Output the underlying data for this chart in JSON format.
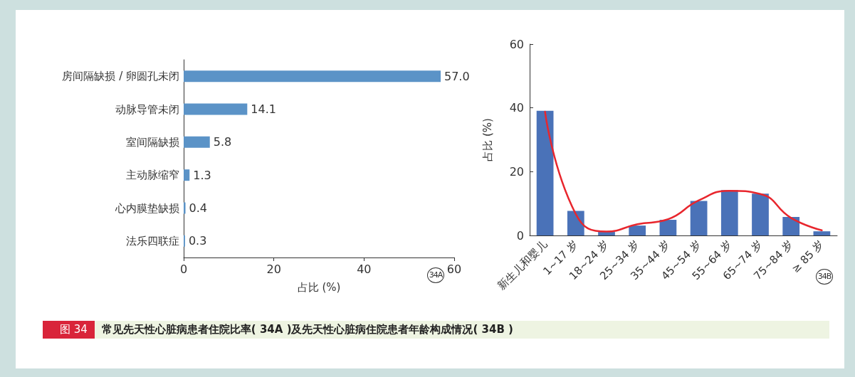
{
  "chart_data": [
    {
      "type": "bar",
      "orientation": "horizontal",
      "categories": [
        "房间隔缺损 / 卵圆孔未闭",
        "动脉导管未闭",
        "室间隔缺损",
        "主动脉缩窄",
        "心内膜垫缺损",
        "法乐四联症"
      ],
      "values": [
        57.0,
        14.1,
        5.8,
        1.3,
        0.4,
        0.3
      ],
      "value_labels": [
        "57.0",
        "14.1",
        "5.8",
        "1.3",
        "0.4",
        "0.3"
      ],
      "color": "#5b93c7",
      "xlim": [
        0,
        60
      ],
      "xticks": [
        0,
        20,
        40,
        60
      ],
      "xlabel": "占比 (%)",
      "grid": false,
      "annotations": [
        "34A",
        "图 34",
        "常见先天性心脏病患者住院比率( 34A )及先天性心脏病住院患者年龄构成情况( 34B )"
      ]
    },
    {
      "type": "bar",
      "categories": [
        "新生儿和婴儿",
        "1~17 岁",
        "18~24 岁",
        "25~34 岁",
        "35~44 岁",
        "45~54 岁",
        "55~64 岁",
        "65~74 岁",
        "75~84 岁",
        "≥ 85 岁"
      ],
      "series": [
        {
          "color": "#4a72b8",
          "values": [
            39.1,
            7.7,
            1.1,
            3.1,
            4.9,
            10.8,
            14.2,
            13.1,
            5.8,
            1.3
          ]
        },
        {
          "type": "line",
          "color": "#e8262d",
          "values": [
            38.8,
            6.7,
            1.2,
            3.5,
            5.1,
            11.0,
            14.0,
            13.0,
            5.5,
            1.6
          ]
        }
      ],
      "ylim": [
        0,
        60
      ],
      "yticks": [
        0,
        20,
        40,
        60
      ],
      "ylabel": "占比 (%)",
      "grid": false,
      "marker": "none",
      "annotations": [
        "34B"
      ]
    }
  ]
}
